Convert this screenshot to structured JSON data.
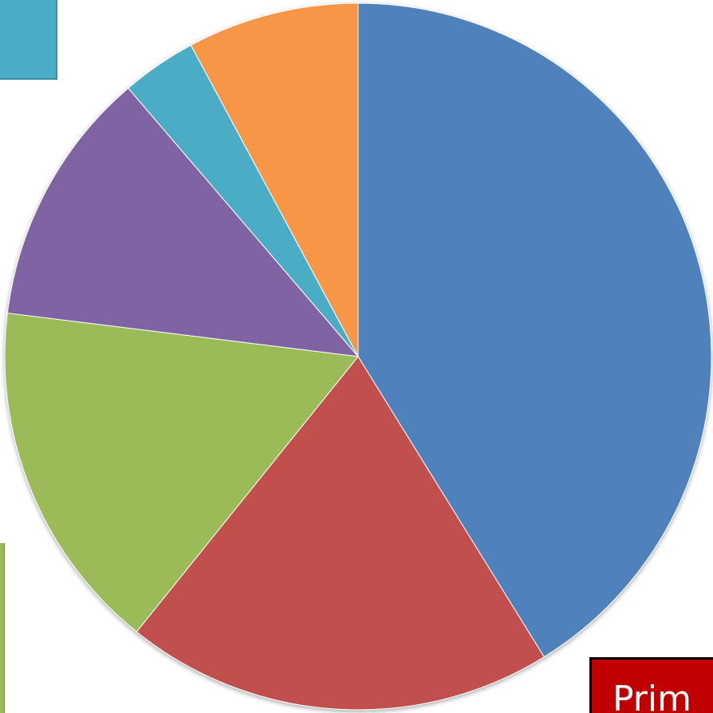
{
  "chart_data": {
    "type": "pie",
    "title": "",
    "start_angle_deg": 0,
    "direction": "clockwise",
    "slices": [
      {
        "value": 42.0,
        "color": "#4f81bd"
      },
      {
        "value": 20.0,
        "color": "#c0504d"
      },
      {
        "value": 16.5,
        "color": "#9bbb59"
      },
      {
        "value": 12.0,
        "color": "#8064a2"
      },
      {
        "value": 3.5,
        "color": "#4bacc6"
      },
      {
        "value": 8.0,
        "color": "#f79646"
      }
    ]
  },
  "overlays": {
    "label_text": "Prim",
    "label_bg_color": "#c00000",
    "swatch_color": "#4bacc6"
  }
}
